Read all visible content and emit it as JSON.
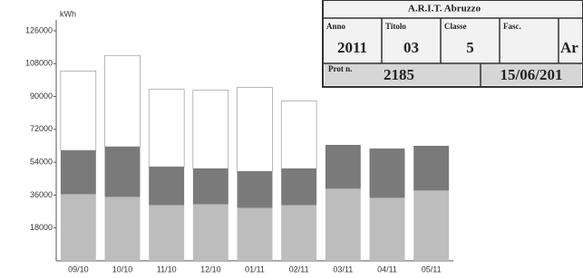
{
  "chart_data": {
    "type": "stacked-bar",
    "y_label": "kWh",
    "categories": [
      "09/10",
      "10/10",
      "11/10",
      "12/10",
      "01/11",
      "02/11",
      "03/11",
      "04/11",
      "05/11"
    ],
    "series": [
      {
        "color": "#bdbdbd",
        "values": [
          36500,
          35000,
          30500,
          31000,
          29000,
          30500,
          39500,
          34500,
          38500
        ]
      },
      {
        "color": "#7a7a7a",
        "values": [
          24000,
          27500,
          21000,
          19500,
          20000,
          20000,
          24000,
          27000,
          24500
        ]
      },
      {
        "color": "#ffffff",
        "values": [
          43500,
          50000,
          42500,
          43000,
          46000,
          37000,
          0,
          0,
          0
        ]
      }
    ],
    "ylim": [
      0,
      126000
    ],
    "yticks": [
      18000,
      36000,
      54000,
      72000,
      90000,
      108000,
      126000
    ]
  },
  "stamp": {
    "title": "A.R.I.T. Abruzzo",
    "fields": [
      {
        "label": "Anno",
        "value": "2011"
      },
      {
        "label": "Titolo",
        "value": "03"
      },
      {
        "label": "Classe",
        "value": "5"
      },
      {
        "label": "Fasc."
      }
    ],
    "extra": "Ar",
    "protocol": {
      "label": "Prot n.",
      "number": "2185",
      "date": "15/06/201"
    }
  }
}
